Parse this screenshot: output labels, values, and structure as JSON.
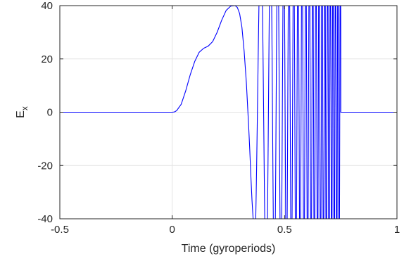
{
  "chart_data": {
    "type": "line",
    "title": "",
    "xlabel": "Time  (gyroperiods)",
    "ylabel": {
      "base": "E",
      "subscript": "x"
    },
    "xlim": [
      -0.5,
      1
    ],
    "ylim": [
      -40,
      40
    ],
    "xticks": [
      -0.5,
      0,
      0.5,
      1
    ],
    "xtick_labels": [
      "-0.5",
      "0",
      "0.5",
      "1"
    ],
    "yticks": [
      -40,
      -20,
      0,
      20,
      40
    ],
    "ytick_labels": [
      "-40",
      "-20",
      "0",
      "20",
      "40"
    ],
    "grid": true,
    "legend": "none",
    "series": [
      {
        "color": "#0000ff",
        "x": [
          -0.5,
          -0.3,
          -0.1,
          0.0,
          0.01,
          0.02,
          0.04,
          0.06,
          0.08,
          0.1,
          0.12,
          0.14,
          0.16,
          0.18,
          0.2,
          0.22,
          0.24,
          0.26,
          0.28,
          0.29,
          0.3,
          0.31,
          0.32,
          0.33,
          0.34,
          0.345,
          0.35,
          0.355,
          0.36
        ],
        "y": [
          0,
          0,
          0,
          0,
          0.1,
          0.6,
          3,
          8,
          14,
          19,
          22.5,
          24,
          24.8,
          26.5,
          30,
          34.5,
          38.2,
          39.8,
          40,
          39.3,
          37,
          32,
          23,
          11,
          -5,
          -14,
          -24,
          -33,
          -40
        ]
      }
    ],
    "oscillation": {
      "x_start": 0.36,
      "x_end": 0.75,
      "amplitude": 40,
      "note": "chirped oscillation clipped at the axis limits; frequency increases with time"
    },
    "after_oscillation": {
      "x": [
        0.75,
        1.0
      ],
      "y": [
        0,
        0
      ]
    }
  }
}
